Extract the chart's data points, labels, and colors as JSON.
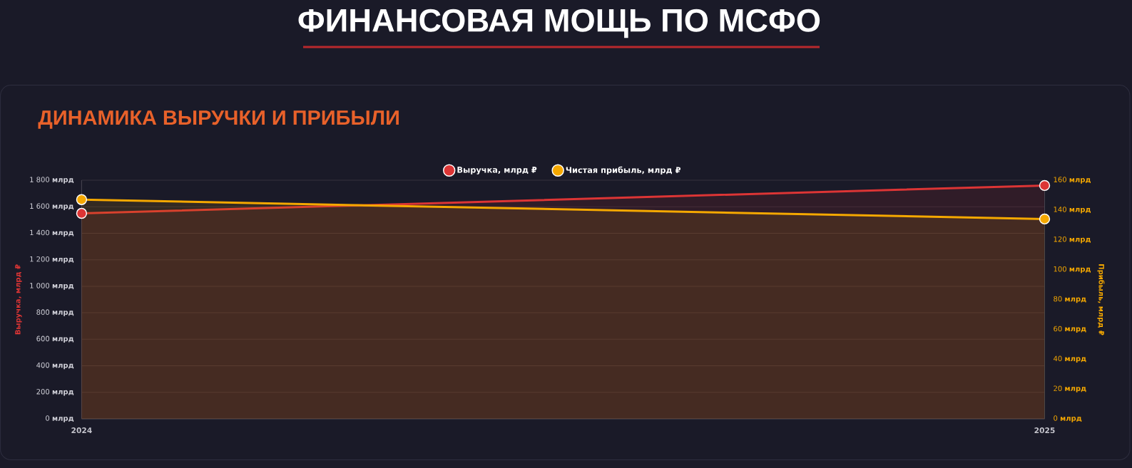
{
  "chart_data": {
    "type": "area",
    "title": "ФИНАНСОВАЯ МОЩЬ ПО МСФО",
    "subtitle": "ДИНАМИКА ВЫРУЧКИ И ПРИБЫЛИ",
    "ylabel": "Выручка, млрд ₽",
    "y2label": "Прибыль, млрд ₽",
    "x": [
      2024,
      2025
    ],
    "xlim": [
      2024,
      2025
    ],
    "xticks": [
      2024,
      2025
    ],
    "series": [
      {
        "name": "Выручка, млрд ₽",
        "color": "#dc3535",
        "values": [
          1550,
          1760
        ]
      },
      {
        "name": "Чистая прибыль, млрд ₽",
        "color": "#f5a800",
        "values": [
          147,
          134
        ],
        "axis": "y2"
      }
    ],
    "ylim": [
      0,
      1800
    ],
    "yticks": [
      {
        "value": 0,
        "label": "0 **млрд**"
      },
      {
        "value": 200,
        "label": "200 **млрд**"
      },
      {
        "value": 400,
        "label": "400 **млрд**"
      },
      {
        "value": 600,
        "label": "600 **млрд**"
      },
      {
        "value": 800,
        "label": "800 **млрд**"
      },
      {
        "value": 1000,
        "label": "1 000 **млрд**"
      },
      {
        "value": 1200,
        "label": "1 200 **млрд**"
      },
      {
        "value": 1400,
        "label": "1 400 **млрд**"
      },
      {
        "value": 1600,
        "label": "1 600 **млрд**"
      },
      {
        "value": 1800,
        "label": "1 800 **млрд**"
      }
    ],
    "y2lim": [
      0,
      160
    ],
    "y2ticks": [
      {
        "value": 0,
        "label": "0 **млрд**"
      },
      {
        "value": 20,
        "label": "20 **млрд**"
      },
      {
        "value": 40,
        "label": "40 **млрд**"
      },
      {
        "value": 60,
        "label": "60 **млрд**"
      },
      {
        "value": 80,
        "label": "80 **млрд**"
      },
      {
        "value": 100,
        "label": "100 **млрд**"
      },
      {
        "value": 120,
        "label": "120 **млрд**"
      },
      {
        "value": 140,
        "label": "140 **млрд**"
      },
      {
        "value": 160,
        "label": "160 **млрд**"
      }
    ],
    "grid": true,
    "legend": "top",
    "marker": "circle",
    "line_style": "solid"
  }
}
